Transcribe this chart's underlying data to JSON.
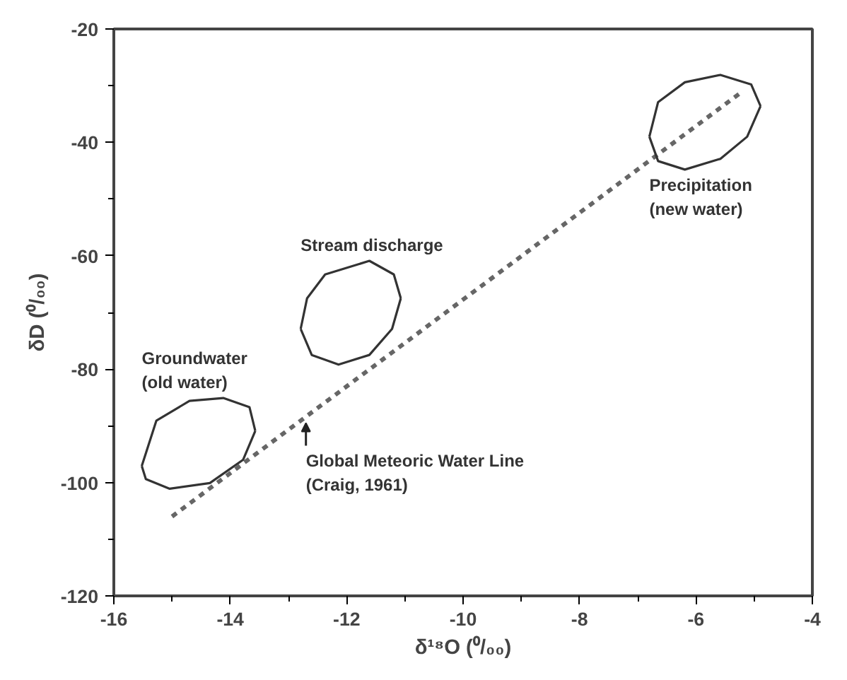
{
  "chart_data": {
    "type": "line",
    "xlabel": "δ¹⁸O (⁰/₀₀)",
    "ylabel": "δD (⁰/₀₀)",
    "xlim": [
      -16,
      -4
    ],
    "ylim": [
      -120,
      -20
    ],
    "xticks": [
      -16,
      {
        "value": -15,
        "label": null
      },
      -14,
      {
        "value": -13,
        "label": null
      },
      -12,
      {
        "value": -11,
        "label": null
      },
      -10,
      {
        "value": -9,
        "label": null
      },
      -8,
      {
        "value": -7,
        "label": null
      },
      -6,
      {
        "value": -5,
        "label": null
      },
      -4
    ],
    "yticks": [
      -120,
      {
        "value": -110,
        "label": null
      },
      -100,
      {
        "value": -90,
        "label": null
      },
      -80,
      {
        "value": -70,
        "label": null
      },
      -60,
      {
        "value": -50,
        "label": null
      },
      -40,
      {
        "value": -30,
        "label": null
      },
      -20
    ],
    "grid": false,
    "marker": "none",
    "series": [
      {
        "color": "#666666",
        "line_style": "dashed",
        "x": [
          -15,
          -5.2
        ],
        "values": [
          -106,
          -31
        ]
      },
      {
        "name": "Groundwater\n(old water)",
        "color": "#333333",
        "line_style": "solid",
        "x": [
          -15.52,
          -15.27,
          -14.7,
          -14.12,
          -13.67,
          -13.57
        ],
        "values": [
          -97.1,
          -89.1,
          -85.6,
          -85.1,
          -86.7,
          -90.9
        ]
      },
      {
        "color": "#333333",
        "line_style": "solid",
        "x": [
          -15.52,
          -15.45,
          -15.04,
          -14.35,
          -13.78,
          -13.57
        ],
        "values": [
          -97.1,
          -99.4,
          -101.1,
          -100.1,
          -96.0,
          -90.9
        ]
      },
      {
        "name": "Stream discharge",
        "color": "#333333",
        "line_style": "solid",
        "x": [
          -12.79,
          -12.68,
          -12.37,
          -11.61,
          -11.19,
          -11.07
        ],
        "values": [
          -72.9,
          -67.5,
          -63.3,
          -60.9,
          -63.3,
          -67.5
        ]
      },
      {
        "color": "#333333",
        "line_style": "solid",
        "x": [
          -12.79,
          -12.6,
          -12.14,
          -11.61,
          -11.22,
          -11.07
        ],
        "values": [
          -72.9,
          -77.5,
          -79.2,
          -77.5,
          -72.9,
          -67.5
        ]
      },
      {
        "color": "#333333",
        "line_style": "solid",
        "x": [
          -6.8,
          -6.65,
          -6.19,
          -5.58,
          -5.05,
          -4.89
        ],
        "values": [
          -39.0,
          -32.9,
          -29.4,
          -28.1,
          -29.8,
          -33.6
        ]
      },
      {
        "name": "Precipitation\n(new water)",
        "color": "#333333",
        "line_style": "solid",
        "x": [
          -6.8,
          -6.65,
          -6.19,
          -5.58,
          -5.12,
          -4.89
        ],
        "values": [
          -39.0,
          -43.3,
          -44.8,
          -42.9,
          -39.0,
          -33.6
        ]
      }
    ],
    "annotations": [
      {
        "text": "Global Meteoric Water Line\n(Craig, 1961)",
        "x": -12.7,
        "y": -89
      }
    ]
  }
}
